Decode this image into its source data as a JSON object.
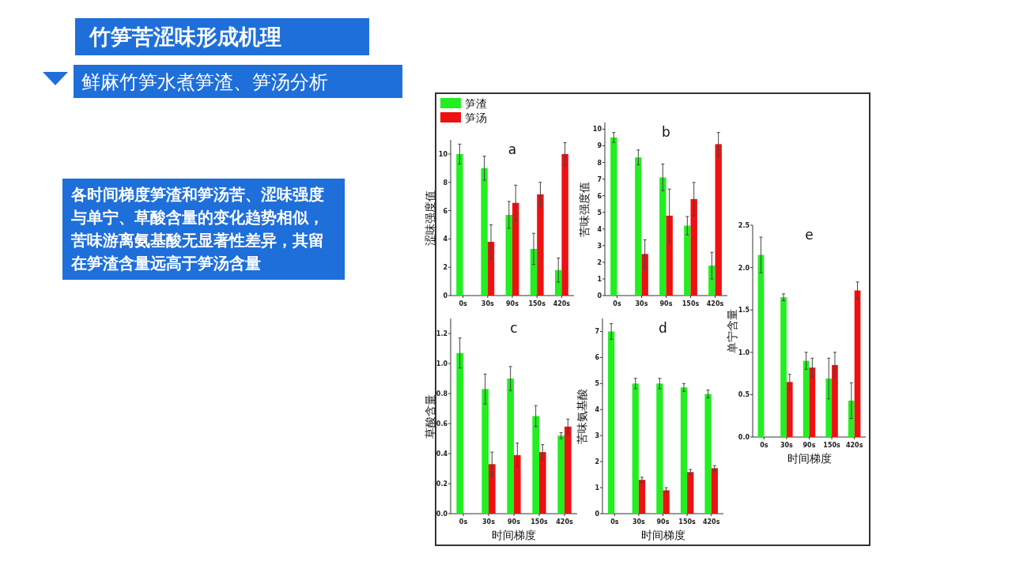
{
  "chart_data": [
    {
      "type": "other",
      "title": "竹笋苦涩味形成机理",
      "subtitle": "鲜麻竹笋水煮笋渣、笋汤分析",
      "annotations": [
        "各时间梯度笋渣和笋汤苦、涩味强度与单宁、草酸含量的变化趋势相似，苦味游离氨基酸无显著性差异，其留在笋渣含量远高于笋汤含量"
      ]
    },
    {
      "type": "bar",
      "title": "a",
      "ylabel": "涩味强度值",
      "categories": [
        "0s",
        "30s",
        "90s",
        "150s",
        "420s"
      ],
      "ylim": [
        0,
        11
      ],
      "yticks": [
        0,
        2,
        4,
        6,
        8,
        10
      ],
      "legend": "top left",
      "series": [
        {
          "name": "笋渣",
          "color": "#22ee22",
          "values": [
            10,
            9.0,
            5.7,
            3.3,
            1.8
          ],
          "errors": [
            0.7,
            0.85,
            0.95,
            1.1,
            0.85
          ]
        },
        {
          "name": "笋汤",
          "color": "#ee1111",
          "values": [
            null,
            3.8,
            6.55,
            7.15,
            10
          ],
          "errors": [
            null,
            1.2,
            1.25,
            0.85,
            0.8
          ]
        }
      ]
    },
    {
      "type": "bar",
      "title": "b",
      "ylabel": "苦味强度值",
      "categories": [
        "0s",
        "30s",
        "90s",
        "150s",
        "420s"
      ],
      "ylim": [
        0,
        10.4
      ],
      "yticks": [
        0,
        1,
        2,
        3,
        4,
        5,
        6,
        7,
        8,
        9,
        10
      ],
      "series": [
        {
          "color": "#22ee22",
          "values": [
            9.5,
            8.3,
            7.1,
            4.2,
            1.8
          ],
          "errors": [
            0.3,
            0.45,
            0.8,
            0.55,
            0.8
          ]
        },
        {
          "color": "#ee1111",
          "values": [
            null,
            2.5,
            4.8,
            5.8,
            9.1
          ],
          "errors": [
            null,
            0.85,
            1.6,
            1.0,
            0.7
          ]
        }
      ]
    },
    {
      "type": "bar",
      "title": "c",
      "xlabel": "时间梯度",
      "ylabel": "草酸含量",
      "categories": [
        "0s",
        "30s",
        "90s",
        "150s",
        "420s"
      ],
      "ylim": [
        0,
        1.3
      ],
      "yticks": [
        {
          "value": 0,
          "label": "0.0"
        },
        0.2,
        0.4,
        0.6,
        0.8,
        {
          "value": 1,
          "label": "1.0"
        },
        1.2
      ],
      "series": [
        {
          "color": "#22ee22",
          "values": [
            1.07,
            0.83,
            0.9,
            0.65,
            0.52
          ],
          "errors": [
            0.1,
            0.1,
            0.08,
            0.07,
            0.02
          ]
        },
        {
          "color": "#ee1111",
          "values": [
            null,
            0.33,
            0.39,
            0.41,
            0.58
          ],
          "errors": [
            null,
            0.08,
            0.08,
            0.05,
            0.05
          ]
        }
      ]
    },
    {
      "type": "bar",
      "title": "d",
      "xlabel": "时间梯度",
      "ylabel": "苦味氨基酸",
      "categories": [
        "0s",
        "30s",
        "90s",
        "150s",
        "420s"
      ],
      "ylim": [
        0,
        7.5
      ],
      "yticks": [
        0,
        1,
        2,
        3,
        4,
        5,
        6,
        7
      ],
      "series": [
        {
          "color": "#22ee22",
          "values": [
            7.0,
            5.0,
            5.0,
            4.85,
            4.6
          ],
          "errors": [
            0.3,
            0.2,
            0.2,
            0.15,
            0.15
          ]
        },
        {
          "color": "#ee1111",
          "values": [
            null,
            1.3,
            0.9,
            1.6,
            1.75
          ],
          "errors": [
            null,
            0.1,
            0.1,
            0.1,
            0.1
          ]
        }
      ]
    },
    {
      "type": "bar",
      "title": "e",
      "xlabel": "时间梯度",
      "ylabel": "单宁含量",
      "categories": [
        "0s",
        "30s",
        "90s",
        "150s",
        "420s"
      ],
      "ylim": [
        0,
        2.5
      ],
      "yticks": [
        {
          "value": 0,
          "label": "0.0"
        },
        0.5,
        {
          "value": 1,
          "label": "1.0"
        },
        1.5,
        {
          "value": 2,
          "label": "2.0"
        },
        2.5
      ],
      "series": [
        {
          "color": "#22ee22",
          "values": [
            2.15,
            1.65,
            0.9,
            0.69,
            0.43
          ],
          "errors": [
            0.21,
            0.04,
            0.1,
            0.24,
            0.21
          ]
        },
        {
          "color": "#ee1111",
          "values": [
            null,
            0.65,
            0.82,
            0.85,
            1.73
          ],
          "errors": [
            null,
            0.09,
            0.11,
            0.15,
            0.1
          ]
        }
      ]
    }
  ]
}
